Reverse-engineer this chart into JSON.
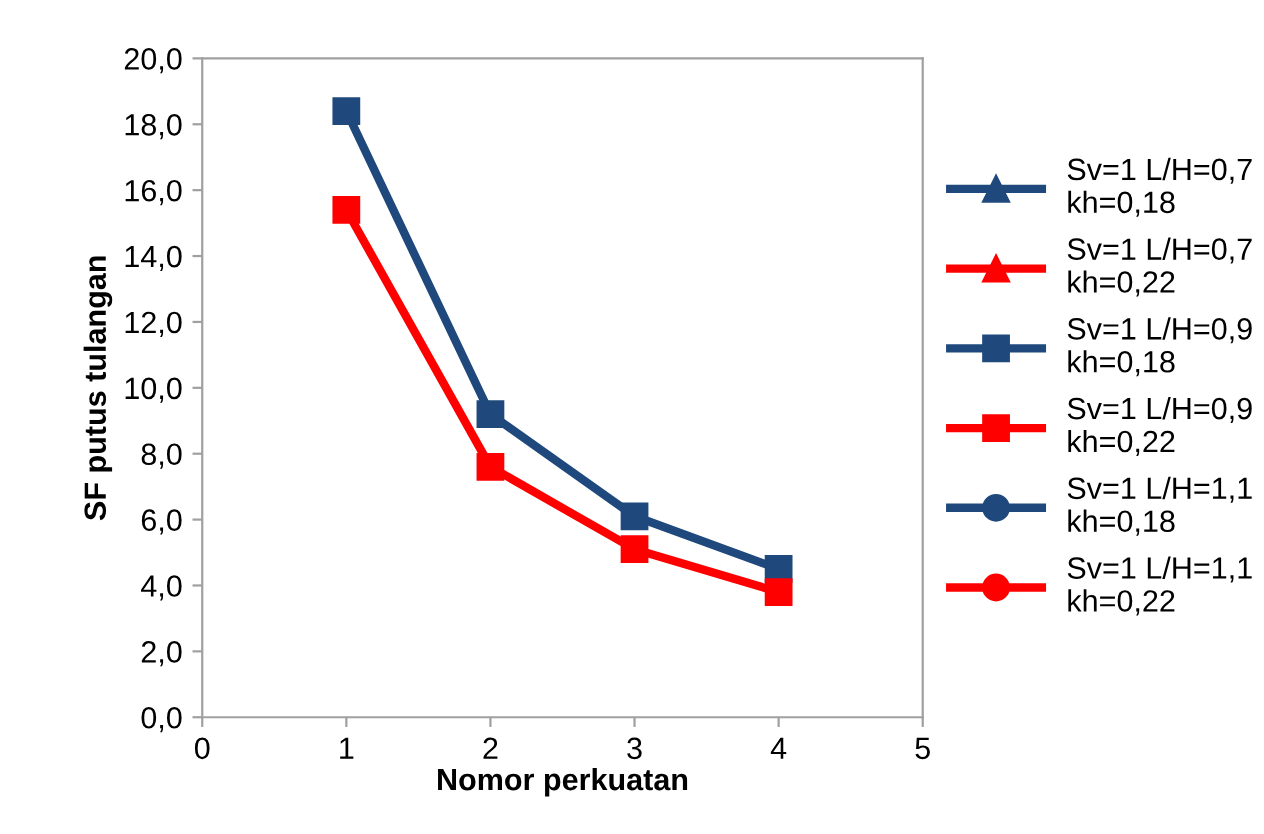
{
  "chart_data": {
    "type": "line",
    "xlabel": "Nomor perkuatan",
    "ylabel": "SF putus tulangan",
    "x": [
      1,
      2,
      3,
      4
    ],
    "xlim": [
      0,
      5
    ],
    "xticks": [
      0,
      1,
      2,
      3,
      4,
      5
    ],
    "ylim": [
      0,
      20
    ],
    "yticks": [
      {
        "value": 0,
        "label": "0,0"
      },
      {
        "value": 2,
        "label": "2,0"
      },
      {
        "value": 4,
        "label": "4,0"
      },
      {
        "value": 6,
        "label": "6,0"
      },
      {
        "value": 8,
        "label": "8,0"
      },
      {
        "value": 10,
        "label": "10,0"
      },
      {
        "value": 12,
        "label": "12,0"
      },
      {
        "value": 14,
        "label": "14,0"
      },
      {
        "value": 16,
        "label": "16,0"
      },
      {
        "value": 18,
        "label": "18,0"
      },
      {
        "value": 20,
        "label": "20,0"
      }
    ],
    "grid": false,
    "legend": "right",
    "line_style": "solid",
    "series": [
      {
        "name": "Sv=1 L/H=0,7\nkh=0,18",
        "color": "#1f497d",
        "marker": "triangle",
        "values": [
          null,
          null,
          null,
          null
        ]
      },
      {
        "name": "Sv=1 L/H=0,7\nkh=0,22",
        "color": "#ff0000",
        "marker": "triangle",
        "values": [
          null,
          null,
          null,
          null
        ]
      },
      {
        "name": "Sv=1 L/H=0,9\nkh=0,18",
        "color": "#1f497d",
        "marker": "square",
        "values": [
          18.4,
          9.2,
          6.1,
          4.5
        ]
      },
      {
        "name": "Sv=1 L/H=0,9\nkh=0,22",
        "color": "#ff0000",
        "marker": "square",
        "values": [
          15.4,
          7.6,
          5.1,
          3.8
        ]
      },
      {
        "name": "Sv=1 L/H=1,1\nkh=0,18",
        "color": "#1f497d",
        "marker": "circle",
        "values": [
          null,
          null,
          null,
          null
        ]
      },
      {
        "name": "Sv=1 L/H=1,1\nkh=0,22",
        "color": "#ff0000",
        "marker": "circle",
        "values": [
          null,
          null,
          null,
          null
        ]
      }
    ]
  }
}
